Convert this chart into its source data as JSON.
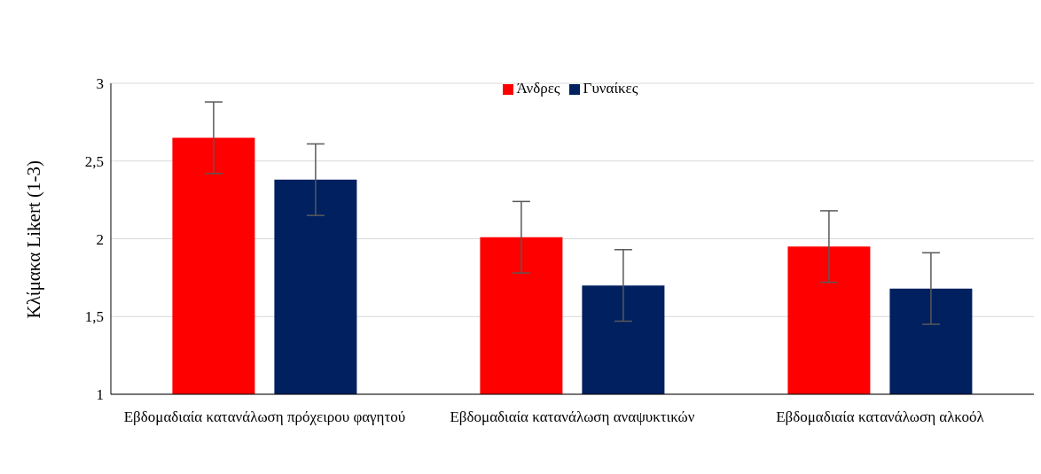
{
  "chart_data": {
    "type": "bar",
    "ylabel": "Κλίμακα Likert (1-3)",
    "categories": [
      "Εβδομαδιαία κατανάλωση πρόχειρου φαγητού",
      "Εβδομαδιαία κατανάλωση αναψυκτικών",
      "Εβδομαδιαία κατανάλωση αλκοόλ"
    ],
    "series": [
      {
        "name": "Άνδρες",
        "color": "#ff0000",
        "values": [
          2.65,
          2.01,
          1.95
        ],
        "errors": [
          0.23,
          0.23,
          0.23
        ]
      },
      {
        "name": "Γυναίκες",
        "color": "#002060",
        "values": [
          2.38,
          1.7,
          1.68
        ],
        "errors": [
          0.23,
          0.23,
          0.23
        ]
      }
    ],
    "ylim": [
      1,
      3
    ],
    "yticks": [
      {
        "value": 1,
        "label": "1"
      },
      {
        "value": 1.5,
        "label": "1,5"
      },
      {
        "value": 2,
        "label": "2"
      },
      {
        "value": 2.5,
        "label": "2,5"
      },
      {
        "value": 3,
        "label": "3"
      }
    ],
    "grid": "y",
    "legend": "top"
  }
}
